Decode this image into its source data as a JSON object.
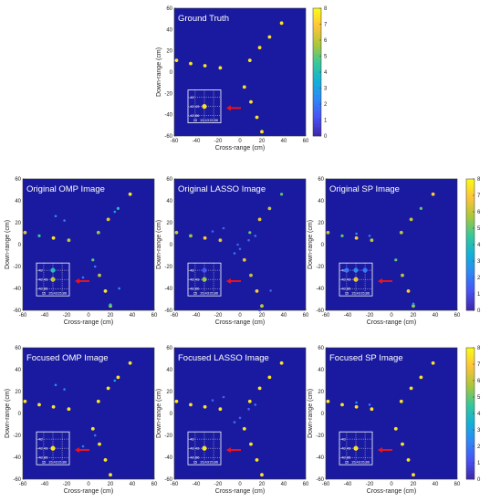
{
  "chart_data": {
    "type": "scatter",
    "xlabel": "Cross-range (cm)",
    "ylabel": "Down-range (cm)",
    "xlim": [
      -60,
      60
    ],
    "ylim": [
      -60,
      60
    ],
    "x_ticks": [
      "-60",
      "-40",
      "-20",
      "0",
      "20",
      "40",
      "60"
    ],
    "y_ticks": [
      "60",
      "40",
      "20",
      "0",
      "-20",
      "-40",
      "-60"
    ],
    "colorbar": {
      "min": 0,
      "max": 8,
      "ticks": [
        "0",
        "1",
        "2",
        "3",
        "4",
        "5",
        "6",
        "7",
        "8"
      ],
      "colormap": "parula"
    },
    "background_color": "#1a1aa0",
    "inset": {
      "x_ticks": [
        "15",
        "15.43",
        "15.86"
      ],
      "y_ticks": [
        "-42",
        "-42.43",
        "-42.86"
      ],
      "arrow_color": "#e8141e"
    },
    "panels": [
      {
        "title": "Ground Truth",
        "points": [
          {
            "x": -58,
            "y": 11,
            "v": 7.5
          },
          {
            "x": -45,
            "y": 8,
            "v": 7.5
          },
          {
            "x": -32,
            "y": 6,
            "v": 7.5
          },
          {
            "x": -18,
            "y": 4,
            "v": 7.5
          },
          {
            "x": 9,
            "y": 11,
            "v": 7.5
          },
          {
            "x": 18,
            "y": 23,
            "v": 7.5
          },
          {
            "x": 27,
            "y": 33,
            "v": 7.5
          },
          {
            "x": 38,
            "y": 46,
            "v": 7.5
          },
          {
            "x": 4,
            "y": -14,
            "v": 7.5
          },
          {
            "x": 10,
            "y": -28,
            "v": 7.5
          },
          {
            "x": 15.43,
            "y": -42.43,
            "v": 7.5
          },
          {
            "x": 20,
            "y": -56,
            "v": 7.5
          }
        ],
        "inset_points": [
          {
            "x": 15.43,
            "y": -42.43,
            "v": 7.5
          }
        ]
      },
      {
        "title": "Original OMP Image",
        "points": [
          {
            "x": -58,
            "y": 11,
            "v": 6.5
          },
          {
            "x": -45,
            "y": 8,
            "v": 4.5
          },
          {
            "x": -32,
            "y": 6,
            "v": 7.5
          },
          {
            "x": -18,
            "y": 4,
            "v": 6.0
          },
          {
            "x": 9,
            "y": 11,
            "v": 5.5
          },
          {
            "x": 18,
            "y": 23,
            "v": 6.5
          },
          {
            "x": 27,
            "y": 33,
            "v": 4.0
          },
          {
            "x": 38,
            "y": 46,
            "v": 7.5
          },
          {
            "x": 4,
            "y": -14,
            "v": 5.0
          },
          {
            "x": 10,
            "y": -28,
            "v": 6.0
          },
          {
            "x": 15.43,
            "y": -42.43,
            "v": 7.5
          },
          {
            "x": 20,
            "y": -56,
            "v": 6.0
          },
          {
            "x": -30,
            "y": 26,
            "v": 2.5
          },
          {
            "x": -22,
            "y": 22,
            "v": 2.0
          },
          {
            "x": 24,
            "y": 30,
            "v": 3.0
          },
          {
            "x": 20,
            "y": -55,
            "v": 4.5
          },
          {
            "x": -5,
            "y": -30,
            "v": 2.0
          },
          {
            "x": 6,
            "y": -20,
            "v": 2.0
          },
          {
            "x": 28,
            "y": -40,
            "v": 2.5
          }
        ],
        "inset_points": [
          {
            "x": 15.43,
            "y": -42,
            "v": 4.0
          },
          {
            "x": 15.43,
            "y": -42.43,
            "v": 6.0
          }
        ]
      },
      {
        "title": "Original LASSO Image",
        "points": [
          {
            "x": -58,
            "y": 11,
            "v": 6.0
          },
          {
            "x": -45,
            "y": 8,
            "v": 5.5
          },
          {
            "x": -32,
            "y": 6,
            "v": 7.0
          },
          {
            "x": -18,
            "y": 4,
            "v": 6.5
          },
          {
            "x": 9,
            "y": 11,
            "v": 5.0
          },
          {
            "x": 18,
            "y": 23,
            "v": 6.5
          },
          {
            "x": 27,
            "y": 33,
            "v": 6.0
          },
          {
            "x": 38,
            "y": 46,
            "v": 5.0
          },
          {
            "x": 4,
            "y": -14,
            "v": 6.5
          },
          {
            "x": 10,
            "y": -28,
            "v": 6.0
          },
          {
            "x": 15.43,
            "y": -42.43,
            "v": 7.0
          },
          {
            "x": 20,
            "y": -56,
            "v": 6.0
          },
          {
            "x": -25,
            "y": 12,
            "v": 1.5
          },
          {
            "x": -15,
            "y": 15,
            "v": 1.5
          },
          {
            "x": -5,
            "y": -8,
            "v": 1.8
          },
          {
            "x": 0,
            "y": -4,
            "v": 1.5
          },
          {
            "x": -2,
            "y": 0,
            "v": 1.5
          },
          {
            "x": 14,
            "y": 8,
            "v": 2.0
          },
          {
            "x": 8,
            "y": 4,
            "v": 1.5
          },
          {
            "x": 28,
            "y": -42,
            "v": 1.5
          },
          {
            "x": 18,
            "y": -60,
            "v": 1.5
          }
        ],
        "inset_points": [
          {
            "x": 15.43,
            "y": -42,
            "v": 1.2
          },
          {
            "x": 15.43,
            "y": -42.43,
            "v": 5.5
          }
        ]
      },
      {
        "title": "Original SP Image",
        "points": [
          {
            "x": -58,
            "y": 11,
            "v": 6.0
          },
          {
            "x": -45,
            "y": 8,
            "v": 5.0
          },
          {
            "x": -32,
            "y": 6,
            "v": 7.0
          },
          {
            "x": -18,
            "y": 4,
            "v": 6.0
          },
          {
            "x": 9,
            "y": 11,
            "v": 6.0
          },
          {
            "x": 18,
            "y": 23,
            "v": 6.0
          },
          {
            "x": 27,
            "y": 33,
            "v": 5.0
          },
          {
            "x": 38,
            "y": 46,
            "v": 7.0
          },
          {
            "x": 4,
            "y": -14,
            "v": 5.0
          },
          {
            "x": 10,
            "y": -28,
            "v": 6.0
          },
          {
            "x": 15.43,
            "y": -42.43,
            "v": 7.0
          },
          {
            "x": 20,
            "y": -56,
            "v": 5.5
          },
          {
            "x": -32,
            "y": 10,
            "v": 2.5
          },
          {
            "x": -20,
            "y": 8,
            "v": 2.0
          },
          {
            "x": 20,
            "y": -54,
            "v": 3.0
          }
        ],
        "inset_points": [
          {
            "x": 15.0,
            "y": -42,
            "v": 2.0
          },
          {
            "x": 15.43,
            "y": -42,
            "v": 2.5
          },
          {
            "x": 15.86,
            "y": -42,
            "v": 2.0
          },
          {
            "x": 15.43,
            "y": -42.43,
            "v": 6.5
          }
        ]
      },
      {
        "title": "Focused OMP Image",
        "points": [
          {
            "x": -58,
            "y": 11,
            "v": 7.5
          },
          {
            "x": -45,
            "y": 8,
            "v": 7.5
          },
          {
            "x": -32,
            "y": 6,
            "v": 7.5
          },
          {
            "x": -18,
            "y": 4,
            "v": 7.5
          },
          {
            "x": 9,
            "y": 11,
            "v": 7.5
          },
          {
            "x": 18,
            "y": 23,
            "v": 7.5
          },
          {
            "x": 27,
            "y": 33,
            "v": 7.5
          },
          {
            "x": 38,
            "y": 46,
            "v": 7.5
          },
          {
            "x": 4,
            "y": -14,
            "v": 7.5
          },
          {
            "x": 10,
            "y": -28,
            "v": 7.5
          },
          {
            "x": 15.43,
            "y": -42.43,
            "v": 7.5
          },
          {
            "x": 20,
            "y": -56,
            "v": 7.5
          },
          {
            "x": -30,
            "y": 26,
            "v": 2.5
          },
          {
            "x": -22,
            "y": 22,
            "v": 2.0
          },
          {
            "x": 24,
            "y": 30,
            "v": 3.0
          },
          {
            "x": -5,
            "y": -30,
            "v": 2.0
          },
          {
            "x": 6,
            "y": -20,
            "v": 2.0
          }
        ],
        "inset_points": [
          {
            "x": 15.43,
            "y": -42.43,
            "v": 7.5
          }
        ]
      },
      {
        "title": "Focused LASSO Image",
        "points": [
          {
            "x": -58,
            "y": 11,
            "v": 7.5
          },
          {
            "x": -45,
            "y": 8,
            "v": 7.5
          },
          {
            "x": -32,
            "y": 6,
            "v": 7.5
          },
          {
            "x": -18,
            "y": 4,
            "v": 7.5
          },
          {
            "x": 9,
            "y": 11,
            "v": 7.5
          },
          {
            "x": 18,
            "y": 23,
            "v": 7.5
          },
          {
            "x": 27,
            "y": 33,
            "v": 7.5
          },
          {
            "x": 38,
            "y": 46,
            "v": 7.5
          },
          {
            "x": 4,
            "y": -14,
            "v": 7.5
          },
          {
            "x": 10,
            "y": -28,
            "v": 7.5
          },
          {
            "x": 15.43,
            "y": -42.43,
            "v": 7.5
          },
          {
            "x": 20,
            "y": -56,
            "v": 7.5
          },
          {
            "x": -25,
            "y": 12,
            "v": 1.5
          },
          {
            "x": -15,
            "y": 15,
            "v": 1.5
          },
          {
            "x": -5,
            "y": -8,
            "v": 1.8
          },
          {
            "x": 0,
            "y": -4,
            "v": 1.5
          },
          {
            "x": 14,
            "y": 8,
            "v": 2.0
          },
          {
            "x": 8,
            "y": 4,
            "v": 1.5
          }
        ],
        "inset_points": [
          {
            "x": 15.43,
            "y": -42.43,
            "v": 7.5
          }
        ]
      },
      {
        "title": "Focused SP Image",
        "points": [
          {
            "x": -58,
            "y": 11,
            "v": 7.5
          },
          {
            "x": -45,
            "y": 8,
            "v": 7.5
          },
          {
            "x": -32,
            "y": 6,
            "v": 7.5
          },
          {
            "x": -18,
            "y": 4,
            "v": 7.5
          },
          {
            "x": 9,
            "y": 11,
            "v": 7.5
          },
          {
            "x": 18,
            "y": 23,
            "v": 7.5
          },
          {
            "x": 27,
            "y": 33,
            "v": 7.5
          },
          {
            "x": 38,
            "y": 46,
            "v": 7.5
          },
          {
            "x": 4,
            "y": -14,
            "v": 7.5
          },
          {
            "x": 10,
            "y": -28,
            "v": 7.5
          },
          {
            "x": 15.43,
            "y": -42.43,
            "v": 7.5
          },
          {
            "x": 20,
            "y": -56,
            "v": 7.5
          },
          {
            "x": -32,
            "y": 10,
            "v": 2.5
          },
          {
            "x": -20,
            "y": 8,
            "v": 2.0
          }
        ],
        "inset_points": [
          {
            "x": 15.43,
            "y": -42.43,
            "v": 7.5
          }
        ]
      }
    ]
  }
}
